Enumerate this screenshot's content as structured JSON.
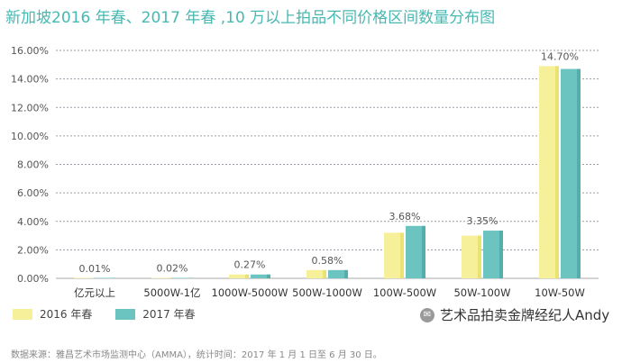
{
  "title": "新加坡2016 年春、2017 年春 ,10 万以上拍品不同价格区间数量分布图",
  "chart_data": {
    "type": "bar",
    "categories": [
      "亿元以上",
      "5000W-1亿",
      "1000W-5000W",
      "500W-1000W",
      "100W-500W",
      "50W-100W",
      "10W-50W"
    ],
    "series": [
      {
        "name": "2016 年春",
        "color": "#f6f09a",
        "values": [
          0.01,
          0.02,
          0.27,
          0.58,
          3.2,
          3.0,
          14.9
        ]
      },
      {
        "name": "2017 年春",
        "color": "#6cc4c0",
        "values": [
          0.01,
          0.02,
          0.27,
          0.58,
          3.68,
          3.35,
          14.7
        ]
      }
    ],
    "data_labels": [
      "0.01%",
      "0.02%",
      "0.27%",
      "0.58%",
      "3.68%",
      "3.35%",
      "14.70%"
    ],
    "ylim": [
      0,
      16
    ],
    "yticks": [
      "0.00%",
      "2.00%",
      "4.00%",
      "6.00%",
      "8.00%",
      "10.00%",
      "12.00%",
      "14.00%",
      "16.00%"
    ],
    "grid": true,
    "legend": "bottom-left"
  },
  "source": "数据来源：雅昌艺术市场监测中心（AMMA），统计时间：2017 年 1 月 1 日至 6 月 30 日。",
  "watermark": {
    "icon": "wechat-icon",
    "text": "艺术品拍卖金牌经纪人Andy"
  }
}
